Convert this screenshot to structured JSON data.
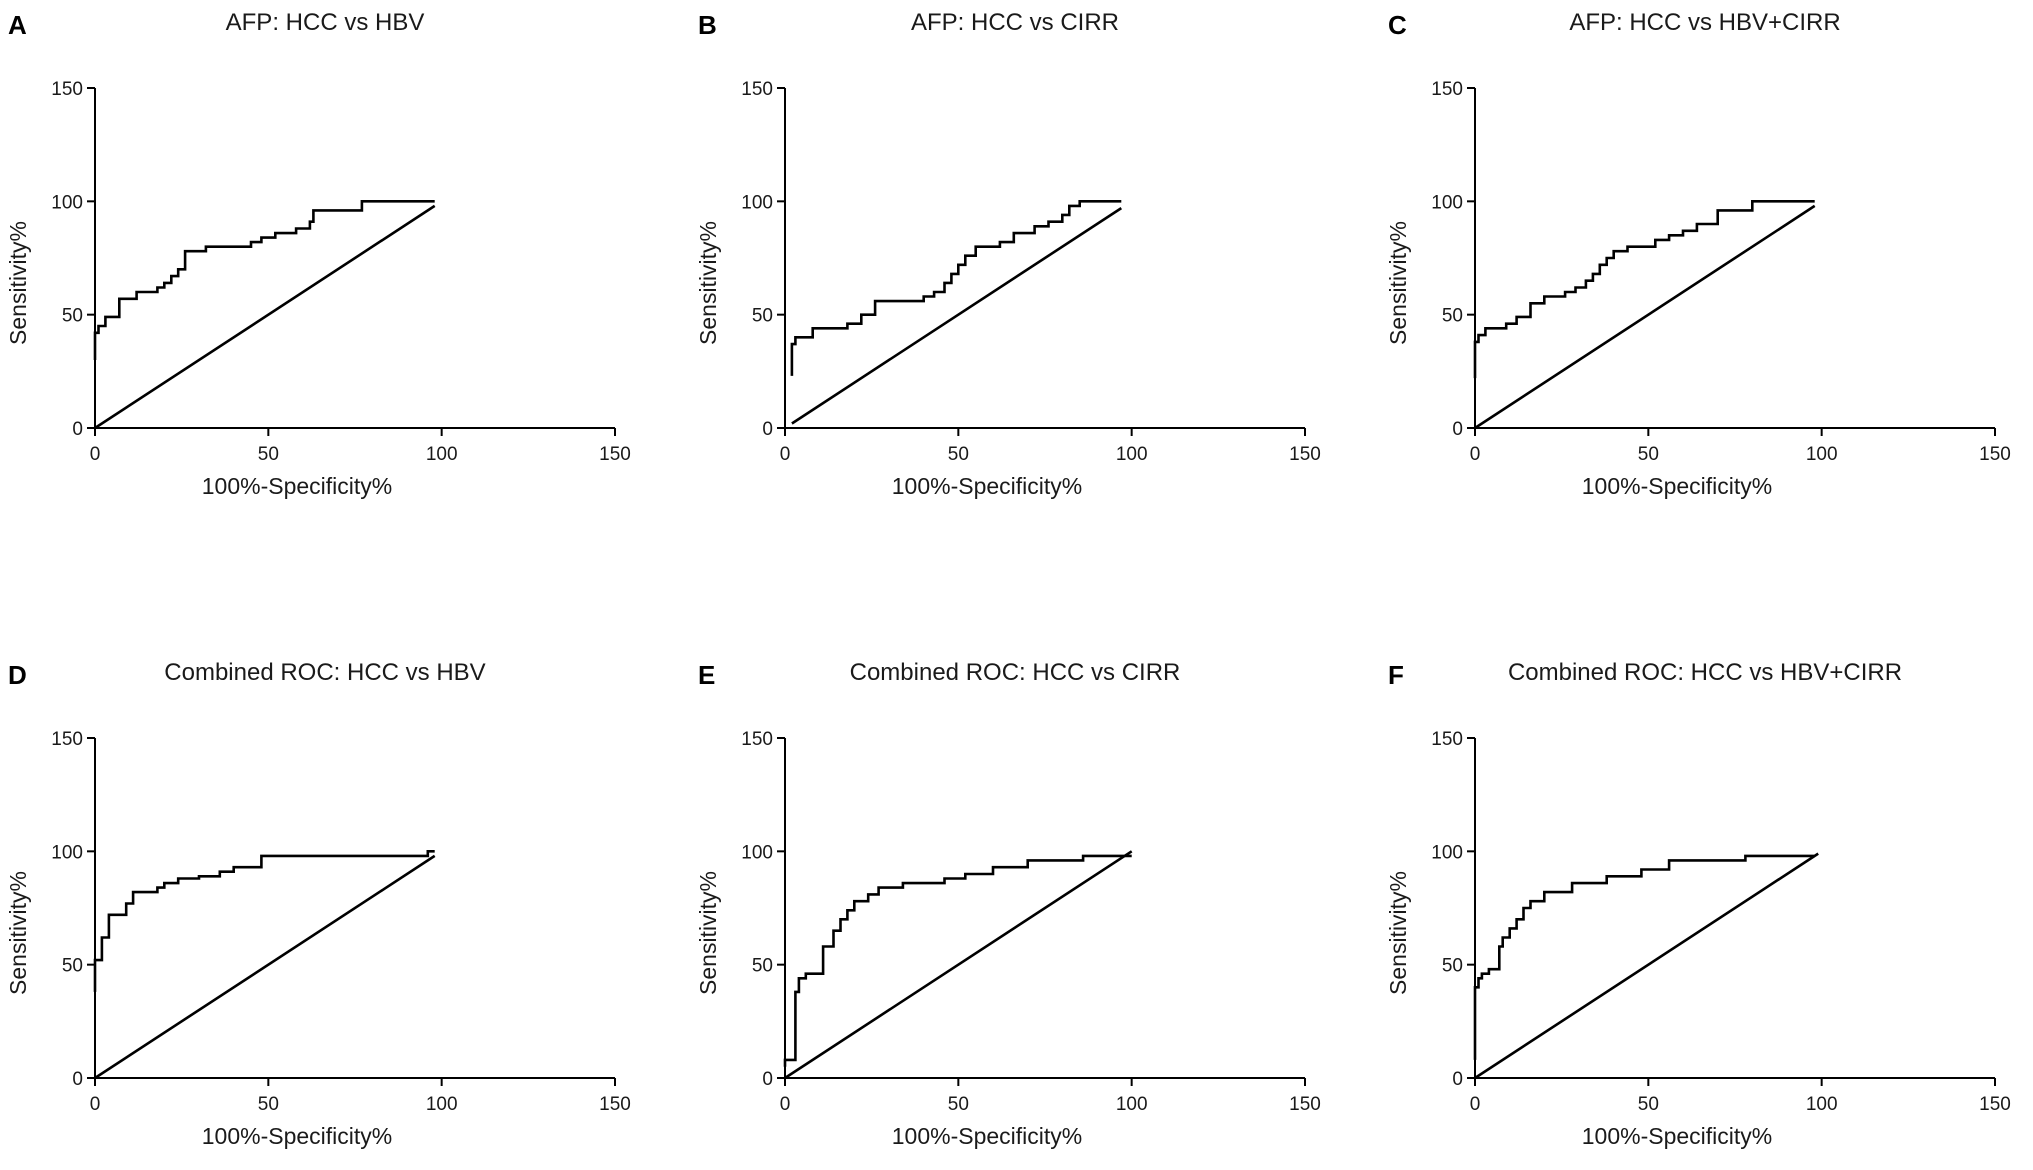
{
  "figure": {
    "x_label": "100%-Specificity%",
    "y_label": "Sensitivity%"
  },
  "chart_data": [
    {
      "letter": "A",
      "type": "line",
      "title": "AFP: HCC vs HBV",
      "xlabel": "100%-Specificity%",
      "ylabel": "Sensitivity%",
      "xlim": [
        0,
        150
      ],
      "ylim": [
        0,
        150
      ],
      "xticks": [
        0,
        50,
        100,
        150
      ],
      "yticks": [
        0,
        50,
        100,
        150
      ],
      "series": [
        {
          "name": "ROC",
          "style": "step",
          "x": [
            0,
            0,
            1,
            1,
            3,
            3,
            7,
            7,
            12,
            12,
            18,
            18,
            20,
            20,
            22,
            22,
            24,
            24,
            26,
            26,
            32,
            32,
            45,
            45,
            48,
            48,
            52,
            52,
            58,
            58,
            62,
            62,
            63,
            63,
            77,
            77,
            98
          ],
          "y": [
            30,
            42,
            42,
            45,
            45,
            49,
            49,
            57,
            57,
            60,
            60,
            62,
            62,
            64,
            64,
            67,
            67,
            70,
            70,
            78,
            78,
            80,
            80,
            82,
            82,
            84,
            84,
            86,
            86,
            88,
            88,
            91,
            91,
            96,
            96,
            100,
            100
          ]
        },
        {
          "name": "Reference",
          "style": "line",
          "x": [
            0,
            98
          ],
          "y": [
            0,
            98
          ]
        }
      ]
    },
    {
      "letter": "B",
      "type": "line",
      "title": "AFP: HCC vs CIRR",
      "xlabel": "100%-Specificity%",
      "ylabel": "Sensitivity%",
      "xlim": [
        0,
        150
      ],
      "ylim": [
        0,
        150
      ],
      "xticks": [
        0,
        50,
        100,
        150
      ],
      "yticks": [
        0,
        50,
        100,
        150
      ],
      "series": [
        {
          "name": "ROC",
          "style": "step",
          "x": [
            2,
            2,
            3,
            3,
            8,
            8,
            18,
            18,
            22,
            22,
            26,
            26,
            40,
            40,
            43,
            43,
            46,
            46,
            48,
            48,
            50,
            50,
            52,
            52,
            55,
            55,
            62,
            62,
            66,
            66,
            72,
            72,
            76,
            76,
            80,
            80,
            82,
            82,
            85,
            85,
            97
          ],
          "y": [
            23,
            37,
            37,
            40,
            40,
            44,
            44,
            46,
            46,
            50,
            50,
            56,
            56,
            58,
            58,
            60,
            60,
            64,
            64,
            68,
            68,
            72,
            72,
            76,
            76,
            80,
            80,
            82,
            82,
            86,
            86,
            89,
            89,
            91,
            91,
            94,
            94,
            98,
            98,
            100,
            100
          ]
        },
        {
          "name": "Reference",
          "style": "line",
          "x": [
            2,
            97
          ],
          "y": [
            2,
            97
          ]
        }
      ]
    },
    {
      "letter": "C",
      "type": "line",
      "title": "AFP: HCC vs HBV+CIRR",
      "xlabel": "100%-Specificity%",
      "ylabel": "Sensitivity%",
      "xlim": [
        0,
        150
      ],
      "ylim": [
        0,
        150
      ],
      "xticks": [
        0,
        50,
        100,
        150
      ],
      "yticks": [
        0,
        50,
        100,
        150
      ],
      "series": [
        {
          "name": "ROC",
          "style": "step",
          "x": [
            0,
            0,
            1,
            1,
            3,
            3,
            9,
            9,
            12,
            12,
            16,
            16,
            20,
            20,
            26,
            26,
            29,
            29,
            32,
            32,
            34,
            34,
            36,
            36,
            38,
            38,
            40,
            40,
            44,
            44,
            52,
            52,
            56,
            56,
            60,
            60,
            64,
            64,
            70,
            70,
            80,
            80,
            98
          ],
          "y": [
            22,
            38,
            38,
            41,
            41,
            44,
            44,
            46,
            46,
            49,
            49,
            55,
            55,
            58,
            58,
            60,
            60,
            62,
            62,
            65,
            65,
            68,
            68,
            72,
            72,
            75,
            75,
            78,
            78,
            80,
            80,
            83,
            83,
            85,
            85,
            87,
            87,
            90,
            90,
            96,
            96,
            100,
            100
          ]
        },
        {
          "name": "Reference",
          "style": "line",
          "x": [
            0,
            98
          ],
          "y": [
            0,
            98
          ]
        }
      ]
    },
    {
      "letter": "D",
      "type": "line",
      "title": "Combined ROC: HCC vs HBV",
      "xlabel": "100%-Specificity%",
      "ylabel": "Sensitivity%",
      "xlim": [
        0,
        150
      ],
      "ylim": [
        0,
        150
      ],
      "xticks": [
        0,
        50,
        100,
        150
      ],
      "yticks": [
        0,
        50,
        100,
        150
      ],
      "series": [
        {
          "name": "ROC",
          "style": "step",
          "x": [
            0,
            0,
            2,
            2,
            4,
            4,
            9,
            9,
            11,
            11,
            18,
            18,
            20,
            20,
            24,
            24,
            30,
            30,
            36,
            36,
            40,
            40,
            48,
            48,
            96,
            96,
            98
          ],
          "y": [
            38,
            52,
            52,
            62,
            62,
            72,
            72,
            77,
            77,
            82,
            82,
            84,
            84,
            86,
            86,
            88,
            88,
            89,
            89,
            91,
            91,
            93,
            93,
            98,
            98,
            100,
            100
          ]
        },
        {
          "name": "Reference",
          "style": "line",
          "x": [
            0,
            98
          ],
          "y": [
            0,
            98
          ]
        }
      ]
    },
    {
      "letter": "E",
      "type": "line",
      "title": "Combined ROC: HCC vs CIRR",
      "xlabel": "100%-Specificity%",
      "ylabel": "Sensitivity%",
      "xlim": [
        0,
        150
      ],
      "ylim": [
        0,
        150
      ],
      "xticks": [
        0,
        50,
        100,
        150
      ],
      "yticks": [
        0,
        50,
        100,
        150
      ],
      "series": [
        {
          "name": "ROC",
          "style": "step",
          "x": [
            0,
            0,
            3,
            3,
            4,
            4,
            6,
            6,
            11,
            11,
            14,
            14,
            16,
            16,
            18,
            18,
            20,
            20,
            24,
            24,
            27,
            27,
            34,
            34,
            46,
            46,
            52,
            52,
            60,
            60,
            70,
            70,
            86,
            86,
            100
          ],
          "y": [
            5,
            8,
            8,
            38,
            38,
            44,
            44,
            46,
            46,
            58,
            58,
            65,
            65,
            70,
            70,
            74,
            74,
            78,
            78,
            81,
            81,
            84,
            84,
            86,
            86,
            88,
            88,
            90,
            90,
            93,
            93,
            96,
            96,
            98,
            98
          ]
        },
        {
          "name": "Reference",
          "style": "line",
          "x": [
            0,
            100
          ],
          "y": [
            0,
            100
          ]
        }
      ]
    },
    {
      "letter": "F",
      "type": "line",
      "title": "Combined ROC: HCC vs HBV+CIRR",
      "xlabel": "100%-Specificity%",
      "ylabel": "Sensitivity%",
      "xlim": [
        0,
        150
      ],
      "ylim": [
        0,
        150
      ],
      "xticks": [
        0,
        50,
        100,
        150
      ],
      "yticks": [
        0,
        50,
        100,
        150
      ],
      "series": [
        {
          "name": "ROC",
          "style": "step",
          "x": [
            0,
            0,
            1,
            1,
            2,
            2,
            4,
            4,
            7,
            7,
            8,
            8,
            10,
            10,
            12,
            12,
            14,
            14,
            16,
            16,
            20,
            20,
            28,
            28,
            38,
            38,
            48,
            48,
            56,
            56,
            78,
            78,
            98
          ],
          "y": [
            8,
            40,
            40,
            44,
            44,
            46,
            46,
            48,
            48,
            58,
            58,
            62,
            62,
            66,
            66,
            70,
            70,
            75,
            75,
            78,
            78,
            82,
            82,
            86,
            86,
            89,
            89,
            92,
            92,
            96,
            96,
            98,
            98
          ]
        },
        {
          "name": "Reference",
          "style": "line",
          "x": [
            0,
            99
          ],
          "y": [
            0,
            99
          ]
        }
      ]
    }
  ]
}
